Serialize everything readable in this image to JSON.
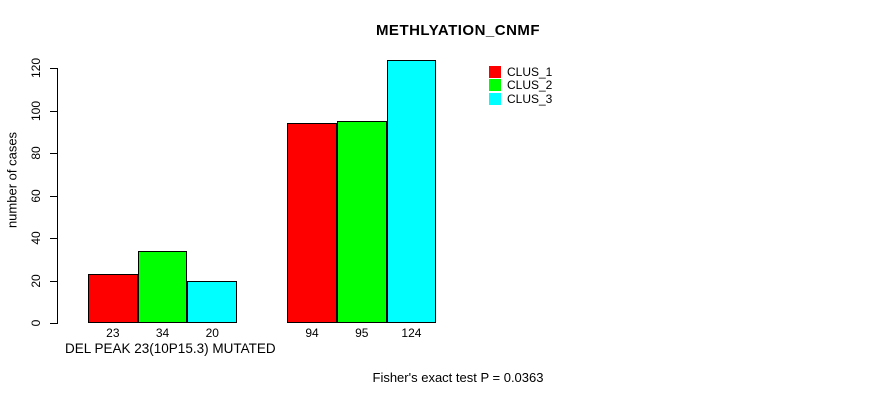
{
  "chart_data": {
    "type": "bar",
    "title": "METHLYATION_CNMF",
    "ylabel": "number of cases",
    "xlabel": "DEL PEAK 23(10P15.3) MUTATED",
    "footer": "Fisher's exact test P = 0.0363",
    "n_groups": 2,
    "series": [
      {
        "name": "CLUS_1",
        "color": "#FF0000",
        "values": [
          23,
          94
        ]
      },
      {
        "name": "CLUS_2",
        "color": "#00FF00",
        "values": [
          34,
          95
        ]
      },
      {
        "name": "CLUS_3",
        "color": "#00FFFF",
        "values": [
          20,
          124
        ]
      }
    ],
    "bar_value_labels": [
      [
        23,
        34,
        20
      ],
      [
        94,
        95,
        124
      ]
    ],
    "ylim": [
      0,
      120
    ],
    "yticks": [
      0,
      20,
      40,
      60,
      80,
      100,
      120
    ],
    "grid": false,
    "bar_border_color": "#000000",
    "background_color": "#FFFFFF",
    "legend": {
      "position": "top-right",
      "entries": [
        "CLUS_1",
        "CLUS_2",
        "CLUS_3"
      ]
    }
  }
}
